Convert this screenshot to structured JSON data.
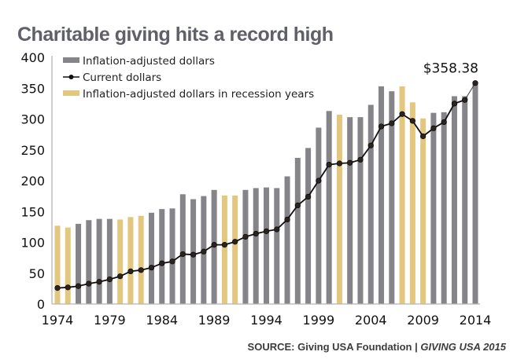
{
  "chart_data": {
    "type": "bar",
    "title": "Charitable giving hits a record high",
    "xlabel": "",
    "ylabel": "",
    "ylim": [
      0,
      400
    ],
    "yticks": [
      0,
      50,
      100,
      150,
      200,
      250,
      300,
      350,
      400
    ],
    "xtick_labels": [
      "1974",
      "1979",
      "1984",
      "1989",
      "1994",
      "1999",
      "2004",
      "2009",
      "2014"
    ],
    "grid": false,
    "legend_position": "top-left",
    "categories": [
      1974,
      1975,
      1976,
      1977,
      1978,
      1979,
      1980,
      1981,
      1982,
      1983,
      1984,
      1985,
      1986,
      1987,
      1988,
      1989,
      1990,
      1991,
      1992,
      1993,
      1994,
      1995,
      1996,
      1997,
      1998,
      1999,
      2000,
      2001,
      2002,
      2003,
      2004,
      2005,
      2006,
      2007,
      2008,
      2009,
      2010,
      2011,
      2012,
      2013,
      2014
    ],
    "recession_years": [
      1974,
      1975,
      1980,
      1981,
      1982,
      1990,
      1991,
      2001,
      2007,
      2008,
      2009
    ],
    "series": [
      {
        "name": "Inflation-adjusted dollars",
        "kind": "bar",
        "color": "#848489",
        "recession_color": "#e3c77f",
        "values": [
          127,
          124,
          130,
          136,
          138,
          138,
          137,
          141,
          143,
          148,
          154,
          155,
          178,
          170,
          175,
          185,
          176,
          176,
          185,
          188,
          189,
          188,
          207,
          237,
          253,
          286,
          313,
          307,
          303,
          303,
          323,
          353,
          345,
          353,
          327,
          301,
          310,
          311,
          337,
          337,
          358
        ]
      },
      {
        "name": "Current dollars",
        "kind": "line",
        "color": "#111111",
        "values": [
          26,
          27,
          29,
          33,
          36,
          40,
          45,
          53,
          55,
          59,
          66,
          69,
          81,
          80,
          85,
          96,
          96,
          101,
          109,
          114,
          118,
          121,
          137,
          160,
          174,
          200,
          226,
          228,
          229,
          234,
          257,
          288,
          293,
          308,
          297,
          272,
          285,
          295,
          325,
          331,
          358.38
        ]
      }
    ],
    "legend": [
      {
        "label": "Inflation-adjusted dollars",
        "type": "bar",
        "color": "#848489"
      },
      {
        "label": "Current dollars",
        "type": "line",
        "color": "#111111"
      },
      {
        "label": "Inflation-adjusted dollars in recession years",
        "type": "bar",
        "color": "#e3c77f"
      }
    ],
    "annotations": [
      {
        "text": "$358.38",
        "year": 2014,
        "value": 358.38
      }
    ]
  },
  "header": {
    "title": "Charitable giving hits a record high"
  },
  "footer": {
    "source_prefix": "SOURCE: Giving USA Foundation | ",
    "source_publication": "GIVING USA 2015"
  }
}
